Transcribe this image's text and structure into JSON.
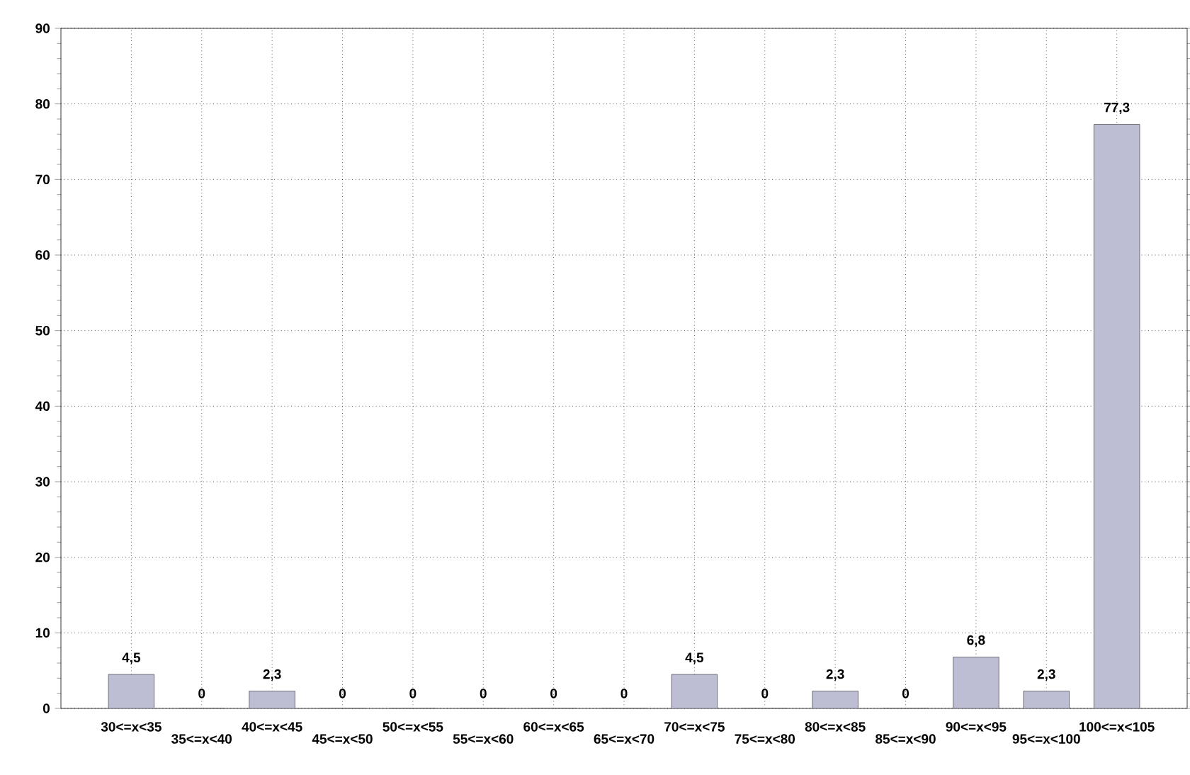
{
  "chart_data": {
    "type": "bar",
    "categories": [
      "30<=x<35",
      "35<=x<40",
      "40<=x<45",
      "45<=x<50",
      "50<=x<55",
      "55<=x<60",
      "60<=x<65",
      "65<=x<70",
      "70<=x<75",
      "75<=x<80",
      "80<=x<85",
      "85<=x<90",
      "90<=x<95",
      "95<=x<100",
      "100<=x<105"
    ],
    "values": [
      4.5,
      0,
      2.3,
      0,
      0,
      0,
      0,
      0,
      4.5,
      0,
      2.3,
      0,
      6.8,
      2.3,
      77.3
    ],
    "value_labels": [
      "4,5",
      "0",
      "2,3",
      "0",
      "0",
      "0",
      "0",
      "0",
      "4,5",
      "0",
      "2,3",
      "0",
      "6,8",
      "2,3",
      "77,3"
    ],
    "color": "#bdbdd3",
    "ylim": [
      0,
      90
    ],
    "yticks": [
      0,
      10,
      20,
      30,
      40,
      50,
      60,
      70,
      80,
      90
    ],
    "grid": true
  }
}
